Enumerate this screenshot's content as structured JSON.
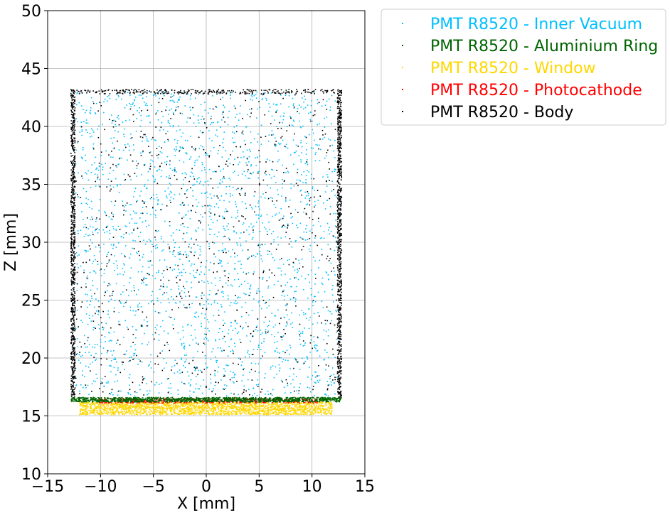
{
  "chart_data": {
    "type": "scatter",
    "xlabel": "X [mm]",
    "ylabel": "Z [mm]",
    "xlim": [
      -15,
      15
    ],
    "ylim": [
      10,
      50
    ],
    "xticks": [
      -15,
      -10,
      -5,
      0,
      5,
      10,
      15
    ],
    "yticks": [
      10,
      15,
      20,
      25,
      30,
      35,
      40,
      45,
      50
    ],
    "xtick_labels": [
      "−15",
      "−10",
      "−5",
      "0",
      "5",
      "10",
      "15"
    ],
    "ytick_labels": [
      "10",
      "15",
      "20",
      "25",
      "30",
      "35",
      "40",
      "45",
      "50"
    ],
    "grid": true,
    "legend_position": "outside-right-top",
    "series": [
      {
        "name": "PMT R8520 - Inner Vacuum",
        "color": "#00bfff",
        "region": {
          "x": [
            -12.4,
            12.4
          ],
          "z": [
            16.7,
            43.0
          ]
        },
        "approx_points": 2200
      },
      {
        "name": "PMT R8520 - Aluminium Ring",
        "color": "#006400",
        "region": {
          "x": [
            -12.8,
            12.8
          ],
          "z": [
            16.2,
            16.6
          ]
        },
        "approx_points": 1400
      },
      {
        "name": "PMT R8520 - Window",
        "color": "#ffd700",
        "region": {
          "x": [
            -12.0,
            11.9
          ],
          "z": [
            15.1,
            16.2
          ]
        },
        "approx_points": 2200
      },
      {
        "name": "PMT R8520 - Photocathode",
        "color": "#ff0000",
        "region": {
          "x": [
            -10.2,
            10.5
          ],
          "z": [
            16.1,
            16.5
          ]
        },
        "approx_points": 500
      },
      {
        "name": "PMT R8520 - Body",
        "color": "#000000",
        "region": {
          "x": [
            -12.8,
            12.8
          ],
          "z": [
            16.5,
            43.2
          ]
        },
        "shape": "walls-and-interior",
        "approx_points": 2600
      }
    ]
  }
}
